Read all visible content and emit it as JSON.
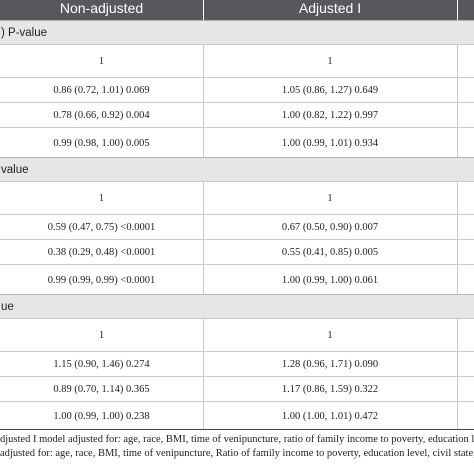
{
  "header": {
    "col1": "Non-adjusted",
    "col2": "Adjusted I"
  },
  "sections": [
    {
      "title": ") P-value",
      "rows": [
        [
          "1",
          "1"
        ],
        [
          "0.86 (0.72, 1.01) 0.069",
          "1.05 (0.86, 1.27) 0.649"
        ],
        [
          "0.78 (0.66, 0.92) 0.004",
          "1.00 (0.82, 1.22) 0.997"
        ],
        [
          "0.99 (0.98, 1.00) 0.005",
          "1.00 (0.99, 1.01) 0.934"
        ]
      ]
    },
    {
      "title": "value",
      "rows": [
        [
          "1",
          "1"
        ],
        [
          "0.59 (0.47, 0.75) <0.0001",
          "0.67 (0.50, 0.90) 0.007"
        ],
        [
          "0.38 (0.29, 0.48) <0.0001",
          "0.55 (0.41, 0.85) 0.005"
        ],
        [
          "0.99 (0.99, 0.99) <0.0001",
          "1.00 (0.99, 1.00) 0.061"
        ]
      ]
    },
    {
      "title": "ue",
      "rows": [
        [
          "1",
          "1"
        ],
        [
          "1.15 (0.90, 1.46) 0.274",
          "1.28 (0.96, 1.71) 0.090"
        ],
        [
          "0.89 (0.70, 1.14) 0.365",
          "1.17 (0.86, 1.59) 0.322"
        ],
        [
          "1.00 (0.99, 1.00) 0.238",
          "1.00 (1.00, 1.01) 0.472"
        ]
      ]
    }
  ],
  "footnotes": [
    "djusted I model adjusted for: age, race, BMI, time of venipuncture, ratio of family income to poverty, education leve",
    "adjusted for: age, race, BMI, time of venipuncture, Ratio of family income to poverty, education level, civil state, sm"
  ]
}
